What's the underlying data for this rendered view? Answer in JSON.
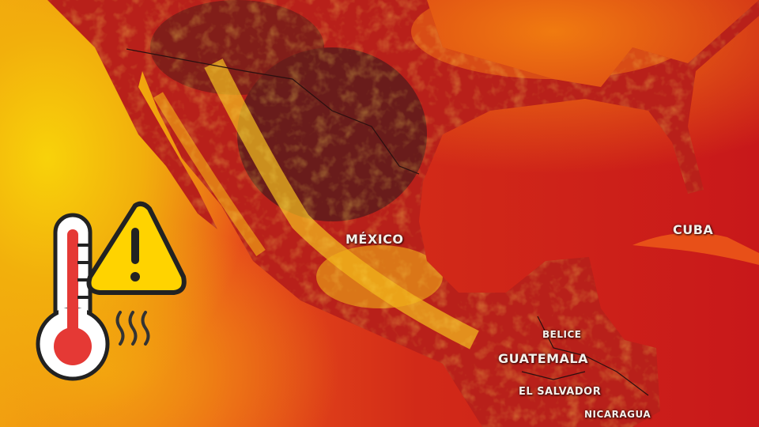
{
  "map": {
    "labels": {
      "mexico": "MÉXICO",
      "cuba": "CUBA",
      "belice": "BELICE",
      "guatemala": "GUATEMALA",
      "el_salvador": "EL SALVADOR",
      "nicaragua": "NICARAGUA"
    },
    "colors": {
      "ocean_warm": "#f8d20a",
      "ocean_hot": "#c8181a",
      "land_dark": "#5a1a1a",
      "land_hot": "#f5d020"
    }
  },
  "icons": [
    "thermometer-icon",
    "warning-triangle-icon",
    "heat-waves-icon"
  ]
}
